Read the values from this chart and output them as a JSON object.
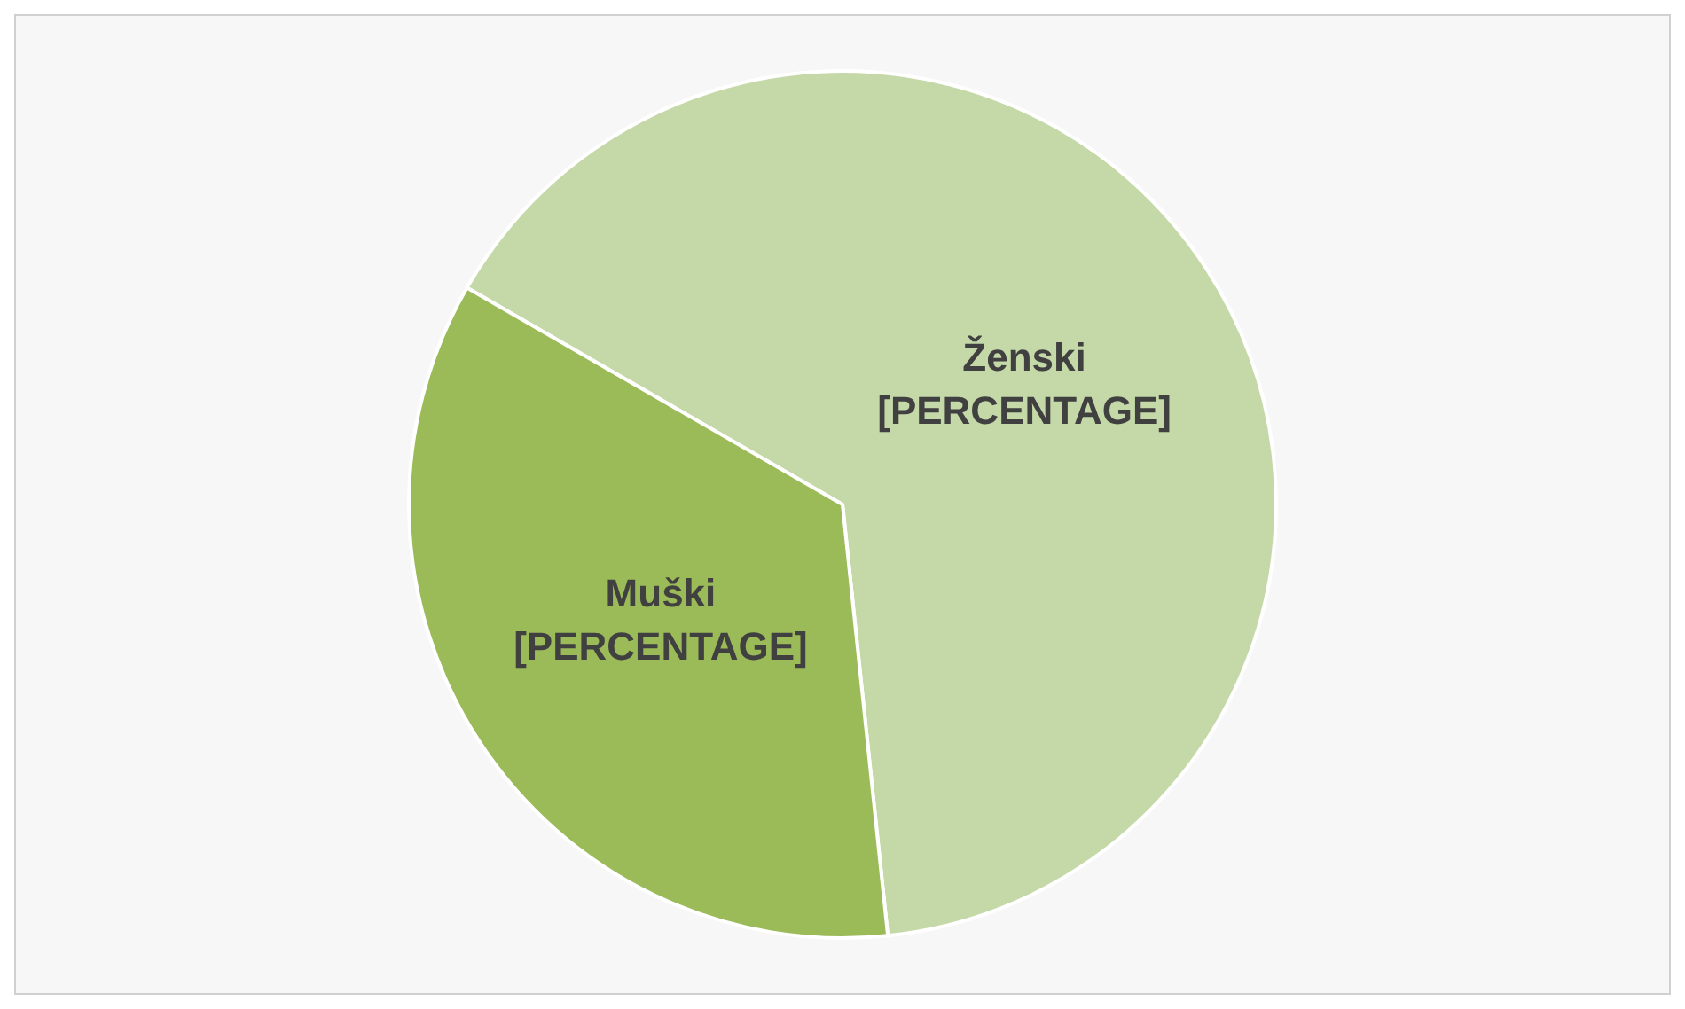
{
  "chart_data": {
    "type": "pie",
    "categories": [
      "Ženski",
      "Muški"
    ],
    "values": [
      65,
      35
    ],
    "colors": [
      "#c5d9a8",
      "#9bbb59"
    ],
    "value_labels": [
      "[PERCENTAGE]",
      "[PERCENTAGE]"
    ],
    "legend": false
  }
}
